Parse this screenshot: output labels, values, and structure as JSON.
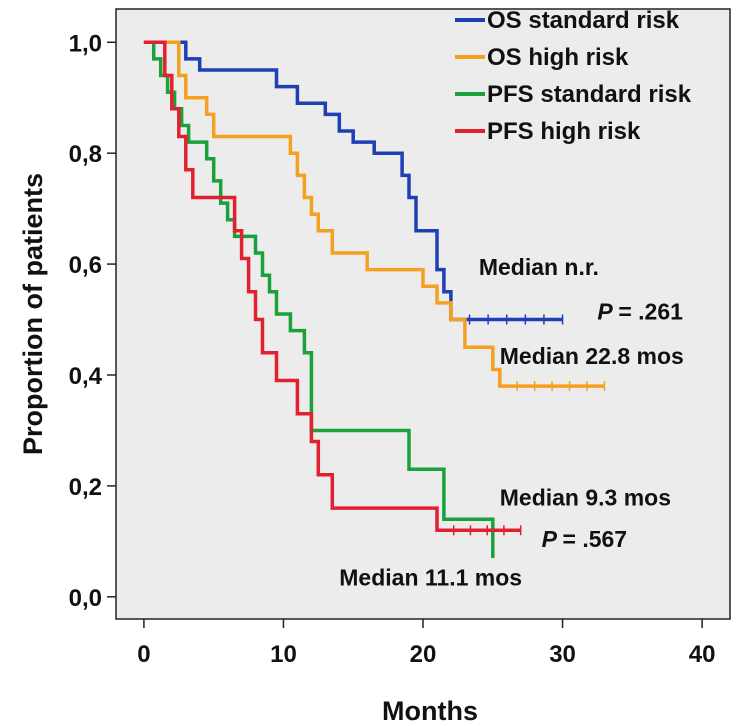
{
  "chart_data": {
    "type": "line",
    "step": true,
    "xlabel": "Months",
    "ylabel": "Proportion of patients",
    "xlim": [
      -2,
      42
    ],
    "ylim": [
      -0.04,
      1.06
    ],
    "xticks": [
      "0",
      "10",
      "20",
      "30",
      "40"
    ],
    "yticks": [
      "0,0",
      "0,2",
      "0,4",
      "0,6",
      "0,8",
      "1,0"
    ],
    "grid": false,
    "background": "#ececec",
    "legend_position": "top-right",
    "series": [
      {
        "name": "OS standard risk",
        "color": "#1f3fb4",
        "points": [
          [
            0,
            1.0
          ],
          [
            3,
            1.0
          ],
          [
            3,
            0.97
          ],
          [
            4,
            0.97
          ],
          [
            4,
            0.95
          ],
          [
            9.5,
            0.95
          ],
          [
            9.5,
            0.92
          ],
          [
            11,
            0.92
          ],
          [
            11,
            0.89
          ],
          [
            13,
            0.89
          ],
          [
            13,
            0.87
          ],
          [
            14,
            0.87
          ],
          [
            14,
            0.84
          ],
          [
            15,
            0.84
          ],
          [
            15,
            0.82
          ],
          [
            16.5,
            0.82
          ],
          [
            16.5,
            0.8
          ],
          [
            18.5,
            0.8
          ],
          [
            18.5,
            0.76
          ],
          [
            19,
            0.76
          ],
          [
            19,
            0.72
          ],
          [
            19.5,
            0.72
          ],
          [
            19.5,
            0.66
          ],
          [
            21,
            0.66
          ],
          [
            21,
            0.59
          ],
          [
            21.5,
            0.59
          ],
          [
            21.5,
            0.55
          ],
          [
            22,
            0.55
          ],
          [
            22,
            0.5
          ],
          [
            30,
            0.5
          ]
        ]
      },
      {
        "name": "OS high risk",
        "color": "#f5a020",
        "points": [
          [
            0,
            1.0
          ],
          [
            2.5,
            1.0
          ],
          [
            2.5,
            0.94
          ],
          [
            3,
            0.94
          ],
          [
            3,
            0.9
          ],
          [
            4.5,
            0.9
          ],
          [
            4.5,
            0.87
          ],
          [
            5,
            0.87
          ],
          [
            5,
            0.83
          ],
          [
            10.5,
            0.83
          ],
          [
            10.5,
            0.8
          ],
          [
            11,
            0.8
          ],
          [
            11,
            0.76
          ],
          [
            11.5,
            0.76
          ],
          [
            11.5,
            0.72
          ],
          [
            12,
            0.72
          ],
          [
            12,
            0.69
          ],
          [
            12.5,
            0.69
          ],
          [
            12.5,
            0.66
          ],
          [
            13.5,
            0.66
          ],
          [
            13.5,
            0.62
          ],
          [
            16,
            0.62
          ],
          [
            16,
            0.59
          ],
          [
            20,
            0.59
          ],
          [
            20,
            0.56
          ],
          [
            21,
            0.56
          ],
          [
            21,
            0.53
          ],
          [
            22,
            0.53
          ],
          [
            22,
            0.5
          ],
          [
            23,
            0.5
          ],
          [
            23,
            0.45
          ],
          [
            25,
            0.45
          ],
          [
            25,
            0.41
          ],
          [
            25.5,
            0.41
          ],
          [
            25.5,
            0.38
          ],
          [
            33,
            0.38
          ]
        ]
      },
      {
        "name": "PFS standard risk",
        "color": "#1aa13a",
        "points": [
          [
            0,
            1.0
          ],
          [
            0.7,
            1.0
          ],
          [
            0.7,
            0.97
          ],
          [
            1.2,
            0.97
          ],
          [
            1.2,
            0.94
          ],
          [
            1.7,
            0.94
          ],
          [
            1.7,
            0.91
          ],
          [
            2.2,
            0.91
          ],
          [
            2.2,
            0.88
          ],
          [
            2.7,
            0.88
          ],
          [
            2.7,
            0.85
          ],
          [
            3.2,
            0.85
          ],
          [
            3.2,
            0.82
          ],
          [
            4.5,
            0.82
          ],
          [
            4.5,
            0.79
          ],
          [
            5,
            0.79
          ],
          [
            5,
            0.75
          ],
          [
            5.5,
            0.75
          ],
          [
            5.5,
            0.71
          ],
          [
            6,
            0.71
          ],
          [
            6,
            0.68
          ],
          [
            6.5,
            0.68
          ],
          [
            6.5,
            0.65
          ],
          [
            8,
            0.65
          ],
          [
            8,
            0.62
          ],
          [
            8.5,
            0.62
          ],
          [
            8.5,
            0.58
          ],
          [
            9,
            0.58
          ],
          [
            9,
            0.55
          ],
          [
            9.5,
            0.55
          ],
          [
            9.5,
            0.51
          ],
          [
            10.5,
            0.51
          ],
          [
            10.5,
            0.48
          ],
          [
            11.5,
            0.48
          ],
          [
            11.5,
            0.44
          ],
          [
            12,
            0.44
          ],
          [
            12,
            0.3
          ],
          [
            19,
            0.3
          ],
          [
            19,
            0.23
          ],
          [
            21.5,
            0.23
          ],
          [
            21.5,
            0.14
          ],
          [
            25,
            0.14
          ],
          [
            25,
            0.07
          ]
        ]
      },
      {
        "name": "PFS high risk",
        "color": "#e22030",
        "points": [
          [
            0,
            1.0
          ],
          [
            1.5,
            1.0
          ],
          [
            1.5,
            0.94
          ],
          [
            2,
            0.94
          ],
          [
            2,
            0.88
          ],
          [
            2.5,
            0.88
          ],
          [
            2.5,
            0.83
          ],
          [
            3,
            0.83
          ],
          [
            3,
            0.77
          ],
          [
            3.5,
            0.77
          ],
          [
            3.5,
            0.72
          ],
          [
            6.5,
            0.72
          ],
          [
            6.5,
            0.66
          ],
          [
            7,
            0.66
          ],
          [
            7,
            0.61
          ],
          [
            7.5,
            0.61
          ],
          [
            7.5,
            0.55
          ],
          [
            8,
            0.55
          ],
          [
            8,
            0.5
          ],
          [
            8.5,
            0.5
          ],
          [
            8.5,
            0.44
          ],
          [
            9.5,
            0.44
          ],
          [
            9.5,
            0.39
          ],
          [
            11,
            0.39
          ],
          [
            11,
            0.33
          ],
          [
            12,
            0.33
          ],
          [
            12,
            0.28
          ],
          [
            12.5,
            0.28
          ],
          [
            12.5,
            0.22
          ],
          [
            13.5,
            0.22
          ],
          [
            13.5,
            0.16
          ],
          [
            21,
            0.16
          ],
          [
            21,
            0.12
          ],
          [
            27,
            0.12
          ]
        ]
      }
    ],
    "annotations": [
      {
        "text": "Median n.r.",
        "x": 24,
        "y": 0.58,
        "italic_p": false
      },
      {
        "text": "= .261",
        "p_label": "P",
        "x": 32.5,
        "y": 0.5
      },
      {
        "text": "Median 22.8 mos",
        "x": 25.5,
        "y": 0.42
      },
      {
        "text": "Median 9.3 mos",
        "x": 25.5,
        "y": 0.165
      },
      {
        "text": "= .567",
        "p_label": "P",
        "x": 28.5,
        "y": 0.09
      },
      {
        "text": "Median 11.1 mos",
        "x": 14,
        "y": 0.02
      }
    ]
  }
}
